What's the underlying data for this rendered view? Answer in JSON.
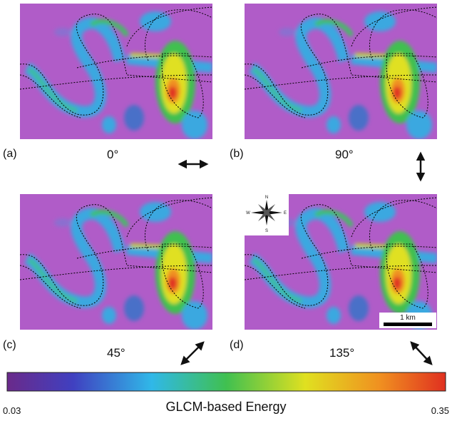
{
  "panels": [
    {
      "label": "(a)",
      "angle": "0°"
    },
    {
      "label": "(b)",
      "angle": "90°"
    },
    {
      "label": "(c)",
      "angle": "45°"
    },
    {
      "label": "(d)",
      "angle": "135°"
    }
  ],
  "colorbar": {
    "min": 0.03,
    "max": 0.35,
    "label": "GLCM-based Energy"
  },
  "scale_bar": "1 km",
  "compass": {
    "n": "N",
    "e": "E",
    "s": "S",
    "w": "W"
  }
}
